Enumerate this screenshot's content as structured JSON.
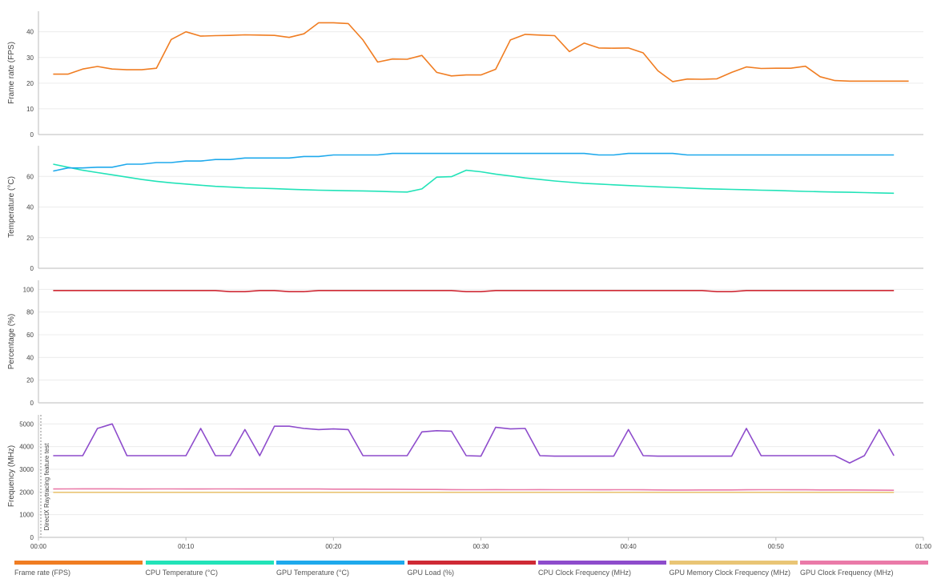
{
  "chart_data": [
    {
      "type": "line",
      "ylabel": "Frame rate (FPS)",
      "ylim": [
        0,
        48
      ],
      "yticks": [
        0,
        10,
        20,
        30,
        40
      ],
      "x": [
        1,
        2,
        3,
        4,
        5,
        6,
        7,
        8,
        9,
        10,
        11,
        12,
        13,
        14,
        15,
        16,
        17,
        18,
        19,
        20,
        21,
        22,
        23,
        24,
        25,
        26,
        27,
        28,
        29,
        30,
        31,
        32,
        33,
        34,
        35,
        36,
        37,
        38,
        39,
        40,
        41,
        42,
        43,
        44,
        45,
        46,
        47,
        48,
        49,
        50,
        51,
        52,
        53,
        54,
        55,
        56,
        57,
        58,
        59
      ],
      "series": [
        {
          "name": "Frame rate (FPS)",
          "color": "#f07d22",
          "values": [
            23.5,
            23.5,
            25.5,
            26.5,
            25.5,
            25.2,
            25.2,
            25.8,
            37,
            40,
            38.3,
            38.5,
            38.6,
            38.8,
            38.7,
            38.6,
            37.8,
            39.2,
            43.5,
            43.5,
            43.2,
            36.8,
            28.2,
            29.4,
            29.3,
            30.8,
            24.2,
            22.8,
            23.2,
            23.2,
            25.4,
            36.8,
            39,
            38.7,
            38.5,
            32.3,
            35.6,
            33.7,
            33.6,
            33.7,
            31.8,
            24.8,
            20.6,
            21.6,
            21.5,
            21.7,
            24.2,
            26.3,
            25.7,
            25.8,
            25.8,
            26.6,
            22.5,
            21,
            20.8,
            20.8,
            20.8,
            20.8,
            20.8
          ]
        }
      ]
    },
    {
      "type": "line",
      "ylabel": "Temperature (°C)",
      "ylim": [
        0,
        80
      ],
      "yticks": [
        0,
        20,
        40,
        60
      ],
      "x": [
        1,
        2,
        3,
        4,
        5,
        6,
        7,
        8,
        9,
        10,
        11,
        12,
        13,
        14,
        15,
        16,
        17,
        18,
        19,
        20,
        21,
        22,
        23,
        24,
        25,
        26,
        27,
        28,
        29,
        30,
        31,
        32,
        33,
        34,
        35,
        36,
        37,
        38,
        39,
        40,
        41,
        42,
        43,
        44,
        45,
        46,
        47,
        48,
        49,
        50,
        51,
        52,
        53,
        54,
        55,
        56,
        57,
        58
      ],
      "series": [
        {
          "name": "CPU Temperature (°C)",
          "color": "#22e3b8",
          "values": [
            68,
            66,
            64,
            62.5,
            61,
            59.5,
            58,
            56.8,
            55.8,
            55,
            54.2,
            53.5,
            53,
            52.5,
            52.3,
            52,
            51.6,
            51.3,
            51,
            50.8,
            50.6,
            50.5,
            50.3,
            50,
            49.8,
            51.8,
            59.5,
            59.8,
            64,
            63,
            61.5,
            60.3,
            59,
            58,
            57,
            56.2,
            55.5,
            55,
            54.5,
            54,
            53.6,
            53.2,
            52.8,
            52.4,
            52,
            51.7,
            51.5,
            51.3,
            51,
            50.8,
            50.5,
            50.2,
            50,
            49.8,
            49.6,
            49.4,
            49.2,
            49
          ]
        },
        {
          "name": "GPU Temperature (°C)",
          "color": "#1ea9ec",
          "values": [
            63.5,
            65.5,
            65.5,
            66,
            66,
            68,
            68,
            69,
            69,
            70,
            70,
            71,
            71,
            72,
            72,
            72,
            72,
            73,
            73,
            74,
            74,
            74,
            74,
            75,
            75,
            75,
            75,
            75,
            75,
            75,
            75,
            75,
            75,
            75,
            75,
            75,
            75,
            74,
            74,
            75,
            75,
            75,
            75,
            74,
            74,
            74,
            74,
            74,
            74,
            74,
            74,
            74,
            74,
            74,
            74,
            74,
            74,
            74
          ]
        }
      ]
    },
    {
      "type": "line",
      "ylabel": "Percentage (%)",
      "ylim": [
        0,
        108
      ],
      "yticks": [
        0,
        20,
        40,
        60,
        80,
        100
      ],
      "x": [
        1,
        2,
        3,
        4,
        5,
        6,
        7,
        8,
        9,
        10,
        11,
        12,
        13,
        14,
        15,
        16,
        17,
        18,
        19,
        20,
        21,
        22,
        23,
        24,
        25,
        26,
        27,
        28,
        29,
        30,
        31,
        32,
        33,
        34,
        35,
        36,
        37,
        38,
        39,
        40,
        41,
        42,
        43,
        44,
        45,
        46,
        47,
        48,
        49,
        50,
        51,
        52,
        53,
        54,
        55,
        56,
        57,
        58
      ],
      "series": [
        {
          "name": "GPU Load (%)",
          "color": "#cf2a35",
          "values": [
            99,
            99,
            99,
            99,
            99,
            99,
            99,
            99,
            99,
            99,
            99,
            99,
            98,
            98,
            99,
            99,
            98,
            98,
            99,
            99,
            99,
            99,
            99,
            99,
            99,
            99,
            99,
            99,
            98,
            98,
            99,
            99,
            99,
            99,
            99,
            99,
            99,
            99,
            99,
            99,
            99,
            99,
            99,
            99,
            99,
            98,
            98,
            99,
            99,
            99,
            99,
            99,
            99,
            99,
            99,
            99,
            99,
            99
          ]
        }
      ]
    },
    {
      "type": "line",
      "ylabel": "Frequency (MHz)",
      "annotation": "DirectX Raytracing feature test",
      "ylim": [
        0,
        5400
      ],
      "yticks": [
        0,
        1000,
        2000,
        3000,
        4000,
        5000
      ],
      "xlim": [
        0,
        60
      ],
      "xticks": [
        "00:00",
        "00:10",
        "00:20",
        "00:30",
        "00:40",
        "00:50",
        "01:00"
      ],
      "x": [
        1,
        2,
        3,
        4,
        5,
        6,
        7,
        8,
        9,
        10,
        11,
        12,
        13,
        14,
        15,
        16,
        17,
        18,
        19,
        20,
        21,
        22,
        23,
        24,
        25,
        26,
        27,
        28,
        29,
        30,
        31,
        32,
        33,
        34,
        35,
        36,
        37,
        38,
        39,
        40,
        41,
        42,
        43,
        44,
        45,
        46,
        47,
        48,
        49,
        50,
        51,
        52,
        53,
        54,
        55,
        56,
        57,
        58
      ],
      "series": [
        {
          "name": "CPU Clock Frequency (MHz)",
          "color": "#8e4ccc",
          "values": [
            3600,
            3600,
            3600,
            4800,
            5000,
            3600,
            3600,
            3600,
            3600,
            3600,
            4800,
            3600,
            3600,
            4750,
            3600,
            4900,
            4900,
            4800,
            4750,
            4780,
            4750,
            3600,
            3600,
            3600,
            3600,
            4650,
            4700,
            4680,
            3600,
            3580,
            4850,
            4780,
            4800,
            3600,
            3580,
            3580,
            3580,
            3580,
            3580,
            4750,
            3600,
            3580,
            3580,
            3580,
            3580,
            3580,
            3580,
            4800,
            3600,
            3600,
            3600,
            3600,
            3600,
            3600,
            3280,
            3600,
            4750,
            3600
          ]
        },
        {
          "name": "GPU Memory Clock Frequency (MHz)",
          "color": "#e9c575",
          "values": [
            1985,
            1985,
            1985,
            1985,
            1985,
            1985,
            1985,
            1985,
            1985,
            1985,
            1985,
            1985,
            1985,
            1985,
            1985,
            1985,
            1985,
            1985,
            1985,
            1985,
            1985,
            1985,
            1985,
            1985,
            1985,
            1985,
            1985,
            1985,
            1985,
            1985,
            1985,
            1985,
            1985,
            1985,
            1985,
            1985,
            1985,
            1985,
            1985,
            1985,
            1985,
            1985,
            1985,
            1985,
            1985,
            1985,
            1985,
            1985,
            1985,
            1985,
            1985,
            1985,
            1985,
            1985,
            1985,
            1985,
            1985,
            1985
          ]
        },
        {
          "name": "GPU Clock Frequency (MHz)",
          "color": "#ea7aa8",
          "values": [
            2130,
            2135,
            2140,
            2140,
            2140,
            2130,
            2130,
            2135,
            2135,
            2130,
            2130,
            2135,
            2135,
            2130,
            2130,
            2130,
            2130,
            2130,
            2130,
            2125,
            2125,
            2125,
            2120,
            2120,
            2115,
            2110,
            2110,
            2105,
            2100,
            2100,
            2105,
            2100,
            2100,
            2105,
            2100,
            2100,
            2100,
            2095,
            2100,
            2100,
            2095,
            2090,
            2085,
            2085,
            2090,
            2090,
            2090,
            2095,
            2100,
            2100,
            2095,
            2095,
            2090,
            2090,
            2090,
            2085,
            2080,
            2075
          ]
        }
      ]
    }
  ]
}
